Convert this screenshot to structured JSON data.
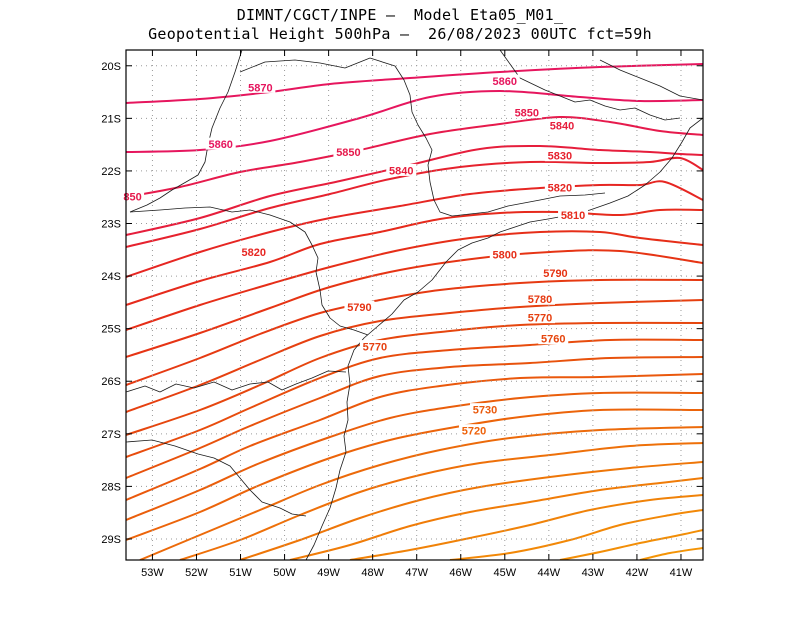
{
  "header": {
    "line1": "DIMNT/CGCT/INPE –  Model Eta05_M01_",
    "line2": "Geopotential Height 500hPa –  26/08/2023 00UTC fct=59h"
  },
  "axes": {
    "lat_labels": [
      "20S",
      "21S",
      "22S",
      "23S",
      "24S",
      "25S",
      "26S",
      "27S",
      "28S",
      "29S"
    ],
    "lon_labels": [
      "53W",
      "52W",
      "51W",
      "50W",
      "49W",
      "48W",
      "47W",
      "46W",
      "45W",
      "44W",
      "43W",
      "42W",
      "41W"
    ],
    "lon_range": [
      -53.6,
      -40.5
    ],
    "lat_range": [
      -29.4,
      -19.7
    ]
  },
  "contour_labels": [
    {
      "text": "5870",
      "lon": -50.55,
      "lat": -20.42,
      "color": "#e6165e"
    },
    {
      "text": "5860",
      "lon": -45.0,
      "lat": -20.3,
      "color": "#e6165e"
    },
    {
      "text": "5860",
      "lon": -51.45,
      "lat": -21.5,
      "color": "#e6165e"
    },
    {
      "text": "5850",
      "lon": -44.5,
      "lat": -20.9,
      "color": "#e61a4c"
    },
    {
      "text": "5850",
      "lon": -48.55,
      "lat": -21.65,
      "color": "#e61a4c"
    },
    {
      "text": "850",
      "lon": -53.45,
      "lat": -22.5,
      "color": "#e61a4c"
    },
    {
      "text": "5840",
      "lon": -43.7,
      "lat": -21.15,
      "color": "#e61e3c"
    },
    {
      "text": "5840",
      "lon": -47.35,
      "lat": -22.0,
      "color": "#e61e3c"
    },
    {
      "text": "5830",
      "lon": -43.75,
      "lat": -21.72,
      "color": "#e6222e"
    },
    {
      "text": "5820",
      "lon": -43.75,
      "lat": -22.32,
      "color": "#e62622"
    },
    {
      "text": "5820",
      "lon": -50.7,
      "lat": -23.55,
      "color": "#e62622"
    },
    {
      "text": "5810",
      "lon": -43.45,
      "lat": -22.85,
      "color": "#e62a1c"
    },
    {
      "text": "5800",
      "lon": -45.0,
      "lat": -23.6,
      "color": "#e62e18"
    },
    {
      "text": "5790",
      "lon": -43.85,
      "lat": -23.95,
      "color": "#e63414"
    },
    {
      "text": "5790",
      "lon": -48.3,
      "lat": -24.6,
      "color": "#e63414"
    },
    {
      "text": "5780",
      "lon": -44.2,
      "lat": -24.45,
      "color": "#e63a12"
    },
    {
      "text": "5770",
      "lon": -44.2,
      "lat": -24.8,
      "color": "#e64010"
    },
    {
      "text": "5770",
      "lon": -47.95,
      "lat": -25.35,
      "color": "#e64010"
    },
    {
      "text": "5760",
      "lon": -43.9,
      "lat": -25.2,
      "color": "#e6460e"
    },
    {
      "text": "5730",
      "lon": -45.45,
      "lat": -26.55,
      "color": "#ea5a0c"
    },
    {
      "text": "5720",
      "lon": -45.7,
      "lat": -26.95,
      "color": "#ee620a"
    }
  ]
}
